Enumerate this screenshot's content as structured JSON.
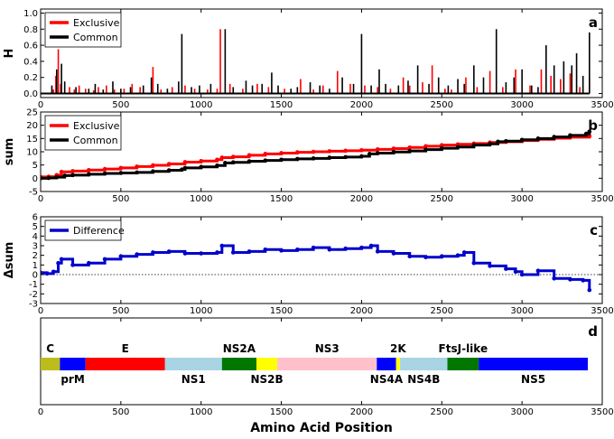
{
  "xlabel": "Amino Acid Position",
  "chart_data": [
    {
      "panel": "a",
      "type": "bar",
      "ylabel": "H",
      "xlim": [
        0,
        3500
      ],
      "ylim": [
        -0.05,
        1.05
      ],
      "xticks": [
        "0",
        "500",
        "1000",
        "1500",
        "2000",
        "2500",
        "3000",
        "3500"
      ],
      "yticks": [
        "0.0",
        "0.2",
        "0.4",
        "0.6",
        "0.8",
        "1.0"
      ],
      "legend": {
        "position": "top-left"
      },
      "series": [
        {
          "name": "Exclusive",
          "color": "#ff0000",
          "x": [
            80,
            95,
            110,
            125,
            180,
            210,
            240,
            280,
            330,
            360,
            410,
            460,
            520,
            570,
            620,
            700,
            750,
            820,
            900,
            960,
            1040,
            1100,
            1120,
            1180,
            1260,
            1350,
            1420,
            1520,
            1620,
            1700,
            1760,
            1850,
            1930,
            2020,
            2100,
            2180,
            2260,
            2300,
            2380,
            2440,
            2520,
            2560,
            2650,
            2720,
            2800,
            2880,
            2960,
            3050,
            3120,
            3180,
            3240,
            3300,
            3360,
            3420
          ],
          "values": [
            0.05,
            0.22,
            0.55,
            0.12,
            0.08,
            0.05,
            0.1,
            0.06,
            0.04,
            0.08,
            0.1,
            0.05,
            0.06,
            0.12,
            0.08,
            0.33,
            0.05,
            0.08,
            0.1,
            0.06,
            0.05,
            0.06,
            0.8,
            0.12,
            0.06,
            0.12,
            0.08,
            0.06,
            0.18,
            0.05,
            0.1,
            0.28,
            0.12,
            0.1,
            0.08,
            0.06,
            0.2,
            0.1,
            0.14,
            0.35,
            0.06,
            0.05,
            0.2,
            0.08,
            0.28,
            0.08,
            0.3,
            0.1,
            0.3,
            0.22,
            0.18,
            0.25,
            0.08,
            0.2
          ]
        },
        {
          "name": "Common",
          "color": "#000000",
          "x": [
            70,
            100,
            130,
            150,
            220,
            300,
            340,
            390,
            450,
            500,
            560,
            640,
            690,
            730,
            790,
            860,
            880,
            940,
            990,
            1060,
            1150,
            1200,
            1280,
            1320,
            1380,
            1440,
            1480,
            1560,
            1600,
            1680,
            1740,
            1800,
            1880,
            1950,
            2000,
            2060,
            2110,
            2150,
            2230,
            2290,
            2350,
            2420,
            2480,
            2540,
            2600,
            2640,
            2700,
            2760,
            2840,
            2900,
            2950,
            3000,
            3060,
            3100,
            3150,
            3200,
            3260,
            3310,
            3340,
            3380,
            3420
          ],
          "values": [
            0.1,
            0.3,
            0.37,
            0.15,
            0.08,
            0.06,
            0.12,
            0.05,
            0.15,
            0.06,
            0.08,
            0.1,
            0.2,
            0.12,
            0.06,
            0.15,
            0.74,
            0.08,
            0.1,
            0.12,
            0.8,
            0.08,
            0.16,
            0.1,
            0.12,
            0.26,
            0.1,
            0.06,
            0.08,
            0.14,
            0.1,
            0.06,
            0.2,
            0.12,
            0.74,
            0.1,
            0.3,
            0.12,
            0.1,
            0.16,
            0.35,
            0.12,
            0.2,
            0.1,
            0.18,
            0.12,
            0.35,
            0.2,
            0.8,
            0.14,
            0.2,
            0.3,
            0.1,
            0.08,
            0.6,
            0.35,
            0.4,
            0.35,
            0.5,
            0.22,
            0.76
          ]
        }
      ]
    },
    {
      "panel": "b",
      "type": "line",
      "ylabel": "sum",
      "xlim": [
        0,
        3500
      ],
      "ylim": [
        -5,
        25
      ],
      "xticks": [
        "0",
        "500",
        "1000",
        "1500",
        "2000",
        "2500",
        "3000",
        "3500"
      ],
      "yticks": [
        "-5",
        "0",
        "5",
        "10",
        "15",
        "20",
        "25"
      ],
      "legend": {
        "position": "top-left"
      },
      "series": [
        {
          "name": "Exclusive",
          "color": "#ff0000",
          "x": [
            0,
            50,
            100,
            130,
            200,
            300,
            400,
            500,
            600,
            700,
            800,
            900,
            1000,
            1100,
            1130,
            1200,
            1300,
            1400,
            1500,
            1600,
            1700,
            1800,
            1900,
            2000,
            2100,
            2200,
            2300,
            2400,
            2500,
            2600,
            2700,
            2800,
            2900,
            3000,
            3100,
            3200,
            3300,
            3420
          ],
          "values": [
            0.5,
            0.6,
            1.2,
            2.4,
            2.7,
            3.1,
            3.5,
            3.9,
            4.4,
            4.9,
            5.4,
            6.1,
            6.5,
            7.0,
            7.8,
            8.1,
            8.7,
            9.2,
            9.5,
            9.8,
            10.0,
            10.2,
            10.4,
            10.6,
            10.9,
            11.2,
            11.6,
            12.1,
            12.5,
            12.8,
            13.1,
            13.5,
            13.8,
            14.2,
            14.7,
            15.1,
            15.5,
            15.9
          ]
        },
        {
          "name": "Common",
          "color": "#000000",
          "x": [
            0,
            50,
            100,
            150,
            200,
            300,
            400,
            500,
            600,
            700,
            800,
            880,
            900,
            1000,
            1100,
            1150,
            1200,
            1300,
            1400,
            1500,
            1600,
            1700,
            1800,
            1900,
            2000,
            2050,
            2100,
            2200,
            2300,
            2400,
            2500,
            2600,
            2700,
            2800,
            2850,
            2900,
            3000,
            3100,
            3200,
            3300,
            3400,
            3420
          ],
          "values": [
            0,
            0.1,
            0.4,
            1.0,
            1.2,
            1.5,
            1.8,
            2.0,
            2.2,
            2.6,
            3.0,
            3.3,
            3.9,
            4.3,
            4.8,
            5.8,
            6.0,
            6.4,
            6.7,
            7.0,
            7.3,
            7.5,
            7.8,
            8.0,
            8.3,
            9.2,
            9.5,
            9.9,
            10.3,
            10.8,
            11.3,
            11.8,
            12.5,
            13.0,
            13.8,
            14.0,
            14.5,
            15.0,
            15.6,
            16.2,
            16.8,
            17.6
          ]
        }
      ]
    },
    {
      "panel": "c",
      "type": "line",
      "ylabel": "Δsum",
      "xlim": [
        0,
        3500
      ],
      "ylim": [
        -3,
        6
      ],
      "xticks": [
        "0",
        "500",
        "1000",
        "1500",
        "2000",
        "2500",
        "3000",
        "3500"
      ],
      "yticks": [
        "-3",
        "-2",
        "-1",
        "0",
        "1",
        "2",
        "3",
        "4",
        "5",
        "6"
      ],
      "legend": {
        "position": "top-left"
      },
      "series": [
        {
          "name": "Difference",
          "color": "#0000cc",
          "x": [
            0,
            40,
            80,
            110,
            130,
            200,
            300,
            400,
            500,
            600,
            700,
            800,
            900,
            1000,
            1100,
            1130,
            1200,
            1300,
            1400,
            1500,
            1600,
            1700,
            1800,
            1900,
            2000,
            2060,
            2100,
            2200,
            2300,
            2400,
            2500,
            2600,
            2640,
            2700,
            2800,
            2900,
            2960,
            3000,
            3100,
            3200,
            3300,
            3380,
            3420
          ],
          "values": [
            0.2,
            0.1,
            0.3,
            1.2,
            1.6,
            1.0,
            1.2,
            1.6,
            1.9,
            2.1,
            2.3,
            2.4,
            2.2,
            2.2,
            2.3,
            3.0,
            2.3,
            2.4,
            2.6,
            2.5,
            2.6,
            2.8,
            2.6,
            2.7,
            2.8,
            3.0,
            2.4,
            2.2,
            1.9,
            1.8,
            1.9,
            2.0,
            2.3,
            1.2,
            0.9,
            0.6,
            0.3,
            0.0,
            0.4,
            -0.4,
            -0.5,
            -0.6,
            -1.6
          ]
        }
      ]
    },
    {
      "panel": "d",
      "type": "bar",
      "xlim": [
        0,
        3500
      ],
      "xticks": [
        "0",
        "500",
        "1000",
        "1500",
        "2000",
        "2500",
        "3000",
        "3500"
      ],
      "segments": [
        {
          "label": "C",
          "start": 0,
          "end": 120,
          "color": "#bcbc1c",
          "label_pos": "above"
        },
        {
          "label": "prM",
          "start": 120,
          "end": 280,
          "color": "#0000ff",
          "label_pos": "below"
        },
        {
          "label": "E",
          "start": 280,
          "end": 775,
          "color": "#ff0000",
          "label_pos": "above"
        },
        {
          "label": "NS1",
          "start": 775,
          "end": 1130,
          "color": "#a8d4e4",
          "label_pos": "below"
        },
        {
          "label": "NS2A",
          "start": 1130,
          "end": 1345,
          "color": "#007800",
          "label_pos": "above"
        },
        {
          "label": "NS2B",
          "start": 1345,
          "end": 1475,
          "color": "#ffff00",
          "label_pos": "below"
        },
        {
          "label": "NS3",
          "start": 1475,
          "end": 2095,
          "color": "#ffc0cb",
          "label_pos": "above"
        },
        {
          "label": "NS4A",
          "start": 2095,
          "end": 2215,
          "color": "#0000ff",
          "label_pos": "below"
        },
        {
          "label": "2K",
          "start": 2215,
          "end": 2240,
          "color": "#ffff00",
          "label_pos": "above"
        },
        {
          "label": "NS4B",
          "start": 2240,
          "end": 2535,
          "color": "#a8d4e4",
          "label_pos": "below"
        },
        {
          "label": "FtsJ-like",
          "start": 2535,
          "end": 2730,
          "color": "#007800",
          "label_pos": "above"
        },
        {
          "label": "NS5",
          "start": 2730,
          "end": 3410,
          "color": "#0000ff",
          "label_pos": "below"
        }
      ]
    }
  ]
}
